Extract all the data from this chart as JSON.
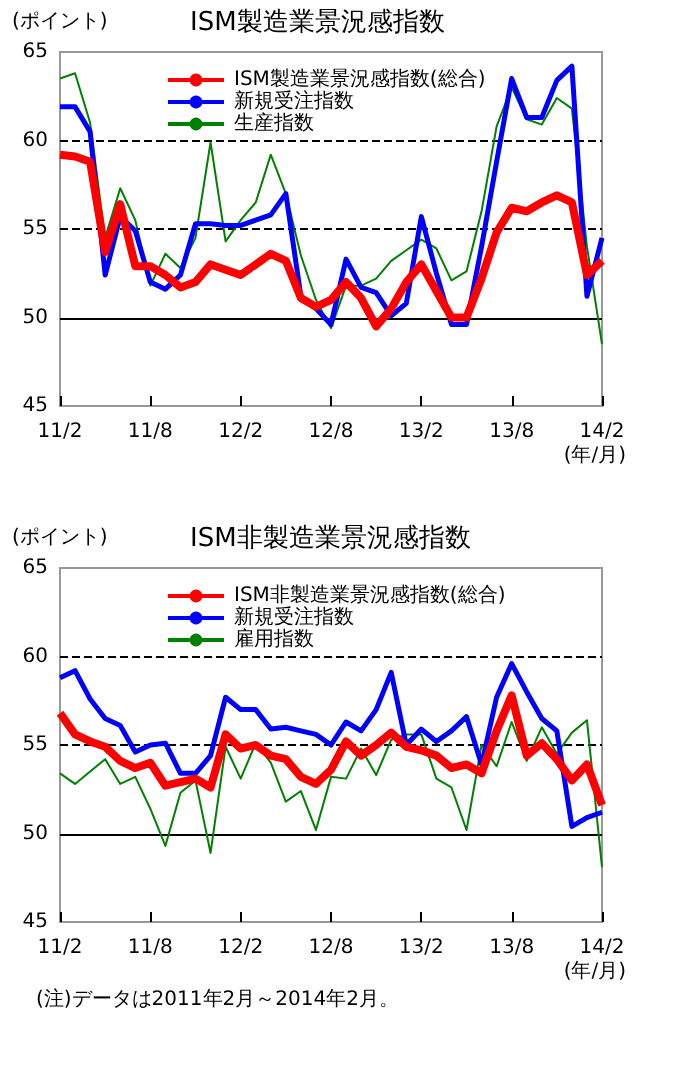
{
  "chart_data": [
    {
      "type": "line",
      "title": "ISM製造業景況感指数",
      "ylabel": "(ポイント)",
      "xlabel": "(年/月)",
      "categories": [
        "11/2",
        null,
        null,
        null,
        null,
        null,
        "11/8",
        null,
        null,
        null,
        null,
        null,
        "12/2",
        null,
        null,
        null,
        null,
        null,
        "12/8",
        null,
        null,
        null,
        null,
        null,
        "13/2",
        null,
        null,
        null,
        null,
        null,
        "13/8",
        null,
        null,
        null,
        null,
        null,
        "14/2"
      ],
      "series": [
        {
          "name": "ISM製造業景況感指数(総合)",
          "color": "#ff0000",
          "values": [
            59.2,
            59.1,
            58.8,
            53.7,
            56.4,
            52.9,
            52.9,
            52.4,
            51.7,
            52,
            53,
            52.7,
            52.4,
            53,
            53.6,
            53.2,
            51.1,
            50.6,
            51,
            52,
            51.1,
            49.5,
            50.5,
            52,
            53,
            51.5,
            50,
            50,
            52.2,
            54.8,
            56.2,
            56,
            56.5,
            56.9,
            56.5,
            52.4,
            53.2
          ]
        },
        {
          "name": "新規受注指数",
          "color": "#0000ff",
          "values": [
            61.9,
            61.9,
            60.5,
            52.4,
            55.7,
            54.9,
            52,
            51.6,
            52.4,
            55.3,
            55.3,
            55.2,
            55.2,
            55.5,
            55.8,
            57,
            51.2,
            50.5,
            49.6,
            53.3,
            51.7,
            51.4,
            50.1,
            50.8,
            55.7,
            52.5,
            49.6,
            49.6,
            54,
            58.8,
            63.5,
            61.3,
            61.3,
            63.4,
            64.2,
            51.2,
            54.5
          ]
        },
        {
          "name": "生産指数",
          "color": "#008000",
          "values": [
            63.5,
            63.8,
            61,
            54.5,
            57.3,
            55.5,
            51.8,
            53.6,
            52.8,
            54.5,
            59.9,
            54.3,
            55.5,
            56.5,
            59.2,
            57,
            53.5,
            51,
            49.4,
            51.8,
            51.8,
            52.2,
            53.2,
            53.8,
            54.4,
            53.9,
            52.1,
            52.6,
            56,
            60.8,
            63,
            61.2,
            60.9,
            62.4,
            61.8,
            54,
            48.5
          ]
        }
      ],
      "ylim": [
        45,
        65
      ],
      "yticks": [
        45,
        50,
        55,
        60,
        65
      ],
      "ref_lines": [
        {
          "axis": "y",
          "value": 50,
          "color": "#000000",
          "line_style": "solid"
        },
        {
          "axis": "y",
          "value": 55,
          "color": "#000000",
          "line_style": "dashed"
        },
        {
          "axis": "y",
          "value": 60,
          "color": "#000000",
          "line_style": "dashed"
        }
      ],
      "grid": false,
      "legend": "top",
      "marker": "none",
      "line_style": "solid"
    },
    {
      "type": "line",
      "title": "ISM非製造業景況感指数",
      "ylabel": "(ポイント)",
      "xlabel": "(年/月)",
      "categories": [
        "11/2",
        null,
        null,
        null,
        null,
        null,
        "11/8",
        null,
        null,
        null,
        null,
        null,
        "12/2",
        null,
        null,
        null,
        null,
        null,
        "12/8",
        null,
        null,
        null,
        null,
        null,
        "13/2",
        null,
        null,
        null,
        null,
        null,
        "13/8",
        null,
        null,
        null,
        null,
        null,
        "14/2"
      ],
      "series": [
        {
          "name": "ISM非製造業景況感指数(総合)",
          "color": "#ff0000",
          "values": [
            56.8,
            55.6,
            55.2,
            54.9,
            54.1,
            53.7,
            54,
            52.7,
            52.9,
            53.1,
            52.6,
            55.6,
            54.8,
            55,
            54.4,
            54.2,
            53.2,
            52.8,
            53.6,
            55.2,
            54.4,
            55,
            55.7,
            54.9,
            54.7,
            54.4,
            53.7,
            53.9,
            53.4,
            55.8,
            57.8,
            54.4,
            55.1,
            54.2,
            53,
            53.9,
            51.6
          ]
        },
        {
          "name": "新規受注指数",
          "color": "#0000ff",
          "values": [
            58.8,
            59.2,
            57.6,
            56.5,
            56.1,
            54.6,
            55,
            55.1,
            53.4,
            53.4,
            54.4,
            57.7,
            57,
            57,
            55.9,
            56,
            55.8,
            55.6,
            55,
            56.3,
            55.8,
            57,
            59.1,
            55,
            55.9,
            55.2,
            55.8,
            56.6,
            53.9,
            57.7,
            59.6,
            58,
            56.5,
            55.8,
            50.4,
            50.9,
            51.2
          ]
        },
        {
          "name": "雇用指数",
          "color": "#008000",
          "values": [
            53.4,
            52.8,
            53.5,
            54.2,
            52.8,
            53.2,
            51.4,
            49.3,
            52.3,
            53,
            48.9,
            54.9,
            53.1,
            55.1,
            54,
            51.8,
            52.4,
            50.2,
            53.2,
            53.1,
            54.8,
            53.3,
            55.3,
            55.6,
            55.6,
            53.1,
            52.6,
            50.2,
            55,
            53.8,
            56.3,
            54.1,
            56,
            54.5,
            55.7,
            56.4,
            48.1
          ]
        }
      ],
      "ylim": [
        45,
        65
      ],
      "yticks": [
        45,
        50,
        55,
        60,
        65
      ],
      "ref_lines": [
        {
          "axis": "y",
          "value": 50,
          "color": "#000000",
          "line_style": "solid"
        },
        {
          "axis": "y",
          "value": 55,
          "color": "#000000",
          "line_style": "dashed"
        },
        {
          "axis": "y",
          "value": 60,
          "color": "#000000",
          "line_style": "dashed"
        }
      ],
      "annotations": [
        "(注)データは2011年2月～2014年2月。"
      ],
      "grid": false,
      "legend": "top",
      "marker": "none",
      "line_style": "solid"
    }
  ]
}
